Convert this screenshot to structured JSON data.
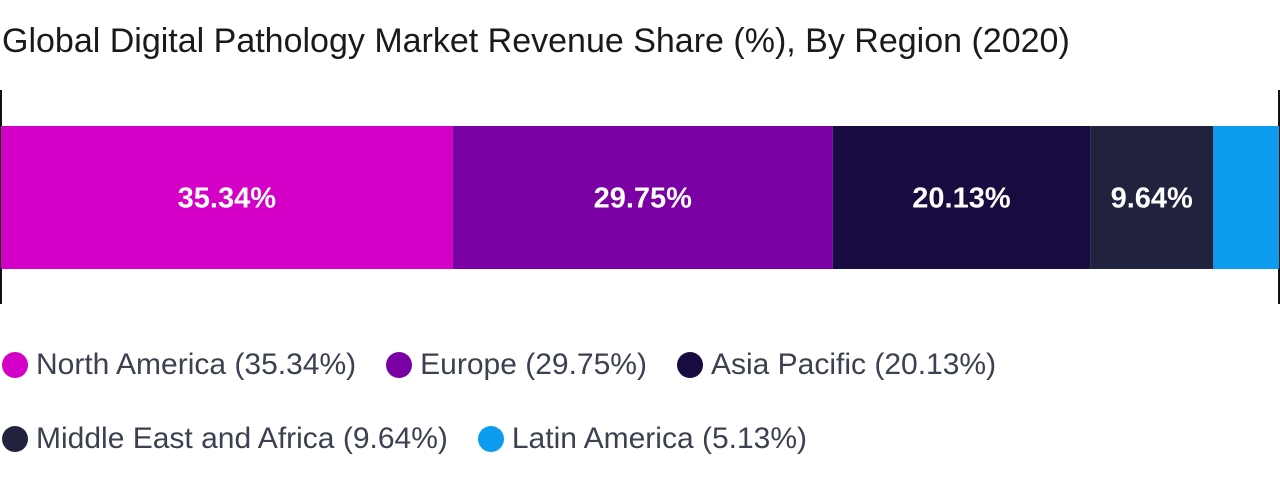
{
  "title": "Global Digital Pathology Market Revenue Share (%), By Region (2020)",
  "chart_data": {
    "type": "bar",
    "orientation": "horizontal-stacked-100",
    "title": "Global Digital Pathology Market Revenue Share (%), By Region (2020)",
    "xlabel": "",
    "ylabel": "",
    "xlim": [
      0,
      100
    ],
    "grid": false,
    "legend_placement": "bottom",
    "series": [
      {
        "name": "North America",
        "value": 35.34,
        "label": "35.34%",
        "legend": "North America (35.34%)",
        "color": "#d500c8"
      },
      {
        "name": "Europe",
        "value": 29.75,
        "label": "29.75%",
        "legend": "Europe (29.75%)",
        "color": "#7a00a4"
      },
      {
        "name": "Asia Pacific",
        "value": 20.13,
        "label": "20.13%",
        "legend": "Asia Pacific (20.13%)",
        "color": "#180b3f"
      },
      {
        "name": "Middle East and Africa",
        "value": 9.64,
        "label": "9.64%",
        "legend": "Middle East and Africa (9.64%)",
        "color": "#21223d"
      },
      {
        "name": "Latin America",
        "value": 5.13,
        "label": "",
        "legend": "Latin America (5.13%)",
        "color": "#0d9bf0"
      }
    ]
  }
}
